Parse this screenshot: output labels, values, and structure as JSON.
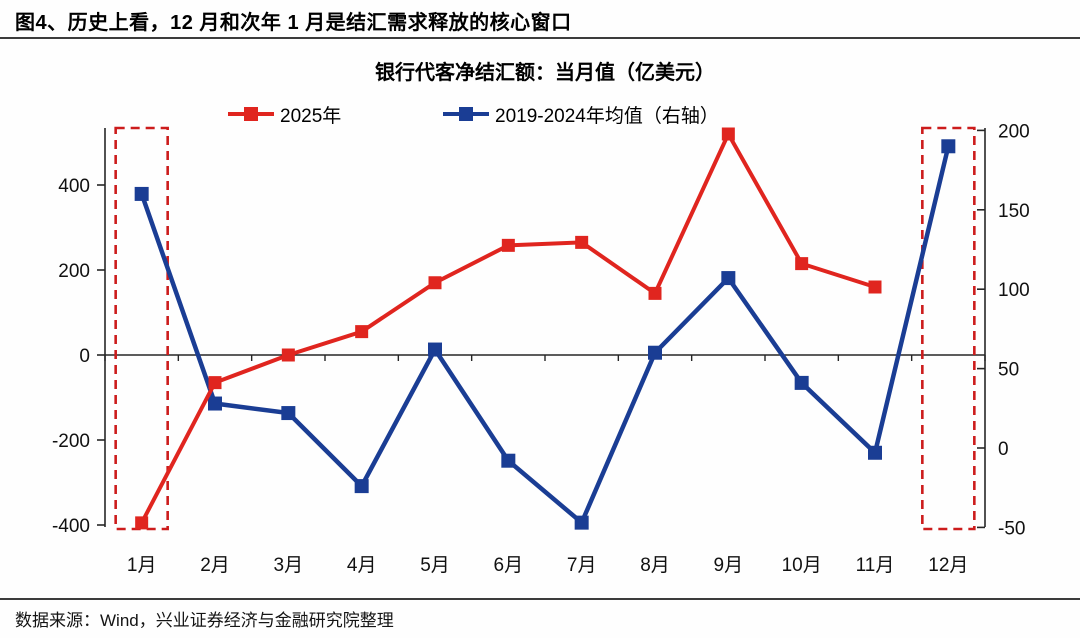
{
  "page": {
    "title": "图4、历史上看，12 月和次年 1 月是结汇需求释放的核心窗口",
    "footer": "数据来源：Wind，兴业证券经济与金融研究院整理"
  },
  "chart_data": {
    "type": "line",
    "title": "银行代客净结汇额：当月值（亿美元）",
    "categories": [
      "1月",
      "2月",
      "3月",
      "4月",
      "5月",
      "6月",
      "7月",
      "8月",
      "9月",
      "10月",
      "11月",
      "12月"
    ],
    "series": [
      {
        "name": "2025年",
        "axis": "left",
        "color": "#e0251f",
        "values": [
          -395,
          -65,
          0,
          55,
          170,
          258,
          265,
          145,
          520,
          215,
          160,
          null
        ]
      },
      {
        "name": "2019-2024年均值（右轴）",
        "axis": "right",
        "color": "#1a3d94",
        "values": [
          160,
          28,
          22,
          -24,
          62,
          -8,
          -47,
          60,
          107,
          41,
          -3,
          190
        ]
      }
    ],
    "left_axis": {
      "ticks": [
        400,
        200,
        0,
        -200,
        -400
      ],
      "range": [
        -400,
        533
      ]
    },
    "right_axis": {
      "ticks": [
        200,
        150,
        100,
        50,
        0,
        -50
      ],
      "range": [
        -50,
        200
      ]
    },
    "highlight_boxes": {
      "months": [
        "1月",
        "12月"
      ],
      "color": "#cc1c1c"
    },
    "legend_position": "top",
    "grid": false,
    "axis_color": "#262626"
  }
}
